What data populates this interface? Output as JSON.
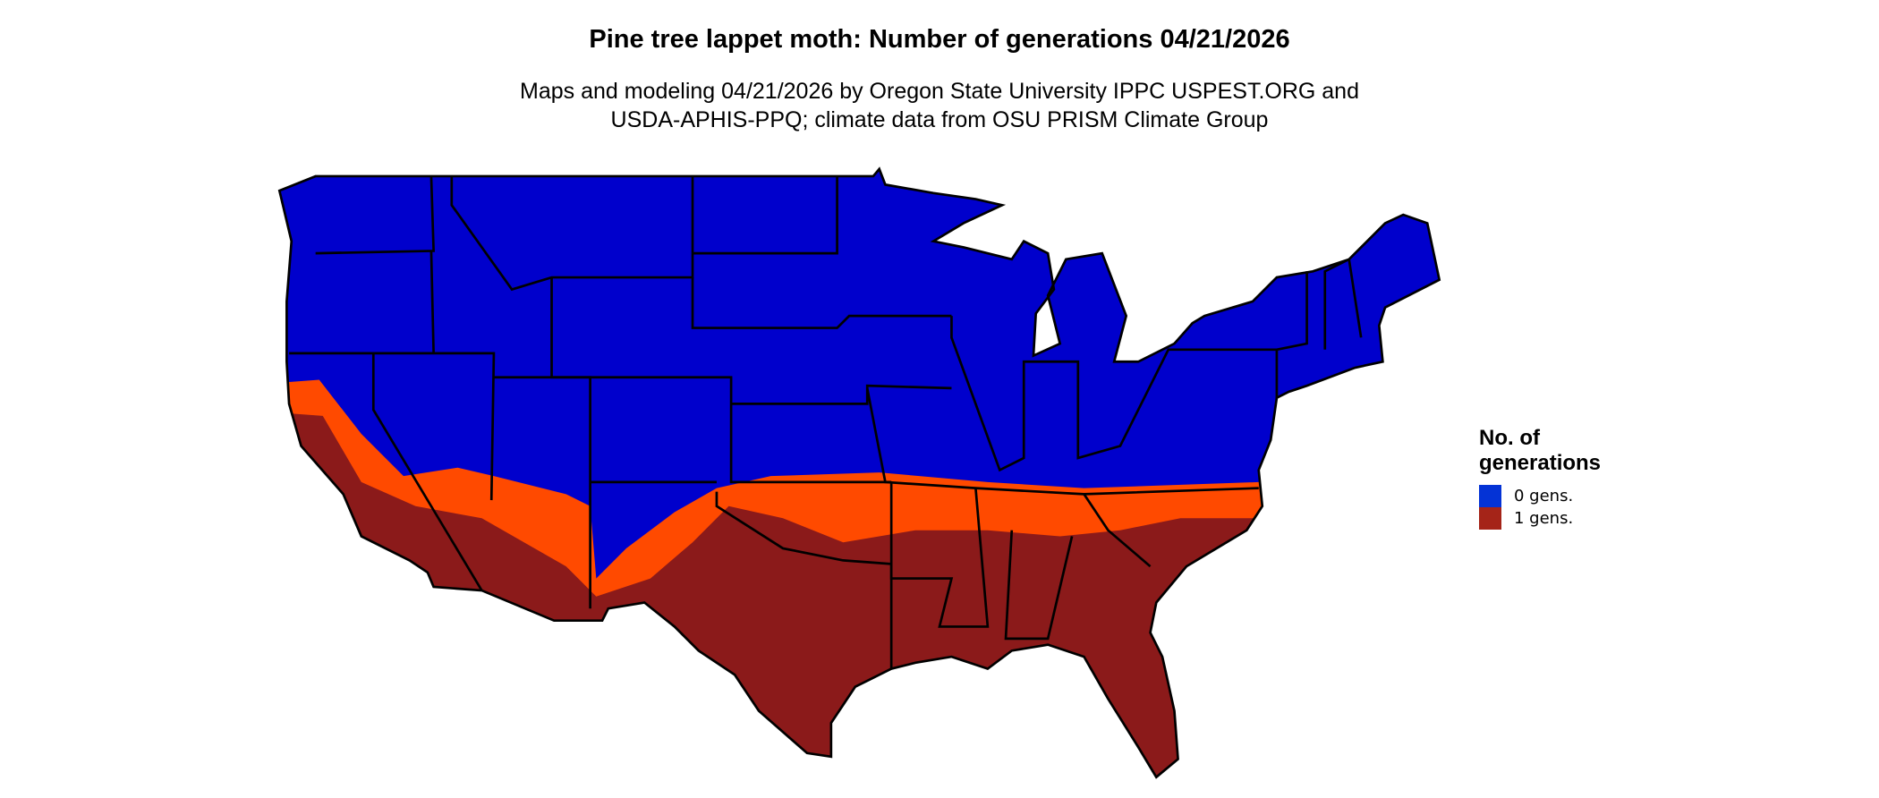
{
  "title": "Pine tree lappet moth: Number of generations 04/21/2026",
  "subtitle_line1": "Maps and modeling 04/21/2026 by Oregon State University IPPC USPEST.ORG and",
  "subtitle_line2": "USDA-APHIS-PPQ; climate data from OSU PRISM Climate Group",
  "legend": {
    "title_line1": "No. of",
    "title_line2": "generations",
    "items": [
      {
        "label": "0 gens.",
        "color": "#0433d6"
      },
      {
        "label": "1 gens.",
        "color": "#a52418"
      }
    ]
  },
  "map_colors": {
    "zero_generations": "#0000cc",
    "transition": "#ff4a00",
    "one_generation": "#8b1a1a",
    "state_borders": "#000000"
  }
}
